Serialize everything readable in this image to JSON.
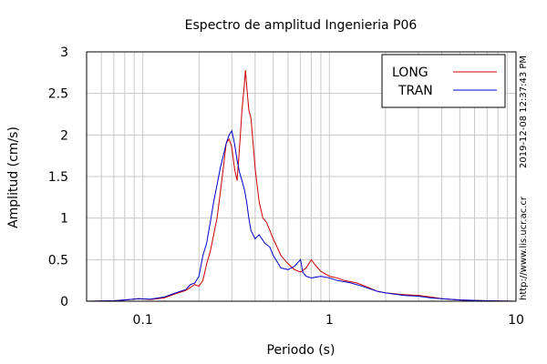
{
  "chart_data": {
    "type": "line",
    "title": "Espectro de amplitud Ingenieria P06",
    "xlabel": "Periodo (s)",
    "ylabel": "Amplitud (cm/s)",
    "x_scale": "log",
    "xlim": [
      0.05,
      10
    ],
    "ylim": [
      0,
      3
    ],
    "x_tick_labels": [
      {
        "value": 0.1,
        "label": "0.1"
      },
      {
        "value": 1,
        "label": "1"
      },
      {
        "value": 10,
        "label": "10"
      }
    ],
    "y_tick_labels": [
      {
        "value": 0,
        "label": "0"
      },
      {
        "value": 0.5,
        "label": "0.5"
      },
      {
        "value": 1,
        "label": "1"
      },
      {
        "value": 1.5,
        "label": "1.5"
      },
      {
        "value": 2,
        "label": "2"
      },
      {
        "value": 2.5,
        "label": "2.5"
      },
      {
        "value": 3,
        "label": "3"
      }
    ],
    "grid": true,
    "legend_position": "top-right",
    "series": [
      {
        "name": "LONG",
        "color": "#cc0000",
        "points": [
          [
            0.05,
            0.0
          ],
          [
            0.07,
            0.005
          ],
          [
            0.085,
            0.02
          ],
          [
            0.095,
            0.03
          ],
          [
            0.11,
            0.02
          ],
          [
            0.13,
            0.04
          ],
          [
            0.15,
            0.09
          ],
          [
            0.17,
            0.13
          ],
          [
            0.19,
            0.2
          ],
          [
            0.2,
            0.18
          ],
          [
            0.21,
            0.25
          ],
          [
            0.22,
            0.45
          ],
          [
            0.23,
            0.6
          ],
          [
            0.25,
            1.0
          ],
          [
            0.26,
            1.3
          ],
          [
            0.27,
            1.6
          ],
          [
            0.28,
            1.9
          ],
          [
            0.29,
            1.95
          ],
          [
            0.3,
            1.85
          ],
          [
            0.31,
            1.6
          ],
          [
            0.32,
            1.45
          ],
          [
            0.33,
            1.85
          ],
          [
            0.34,
            2.3
          ],
          [
            0.35,
            2.6
          ],
          [
            0.355,
            2.78
          ],
          [
            0.36,
            2.6
          ],
          [
            0.37,
            2.3
          ],
          [
            0.38,
            2.2
          ],
          [
            0.39,
            1.9
          ],
          [
            0.4,
            1.6
          ],
          [
            0.42,
            1.2
          ],
          [
            0.44,
            1.0
          ],
          [
            0.46,
            0.95
          ],
          [
            0.48,
            0.85
          ],
          [
            0.5,
            0.75
          ],
          [
            0.55,
            0.55
          ],
          [
            0.6,
            0.45
          ],
          [
            0.65,
            0.38
          ],
          [
            0.7,
            0.35
          ],
          [
            0.75,
            0.4
          ],
          [
            0.8,
            0.5
          ],
          [
            0.85,
            0.42
          ],
          [
            0.9,
            0.36
          ],
          [
            1.0,
            0.3
          ],
          [
            1.1,
            0.28
          ],
          [
            1.2,
            0.25
          ],
          [
            1.4,
            0.22
          ],
          [
            1.6,
            0.17
          ],
          [
            1.8,
            0.12
          ],
          [
            2.0,
            0.1
          ],
          [
            2.5,
            0.08
          ],
          [
            3.0,
            0.07
          ],
          [
            3.5,
            0.05
          ],
          [
            4.0,
            0.03
          ],
          [
            5.0,
            0.015
          ],
          [
            7.0,
            0.005
          ],
          [
            10.0,
            0.0
          ]
        ]
      },
      {
        "name": "TRAN",
        "color": "#0000cc",
        "points": [
          [
            0.05,
            0.0
          ],
          [
            0.07,
            0.005
          ],
          [
            0.085,
            0.02
          ],
          [
            0.095,
            0.03
          ],
          [
            0.11,
            0.025
          ],
          [
            0.13,
            0.05
          ],
          [
            0.15,
            0.1
          ],
          [
            0.17,
            0.14
          ],
          [
            0.18,
            0.2
          ],
          [
            0.19,
            0.22
          ],
          [
            0.2,
            0.3
          ],
          [
            0.21,
            0.55
          ],
          [
            0.22,
            0.7
          ],
          [
            0.23,
            0.95
          ],
          [
            0.24,
            1.2
          ],
          [
            0.25,
            1.4
          ],
          [
            0.26,
            1.6
          ],
          [
            0.27,
            1.75
          ],
          [
            0.28,
            1.9
          ],
          [
            0.29,
            2.0
          ],
          [
            0.3,
            2.05
          ],
          [
            0.31,
            1.9
          ],
          [
            0.32,
            1.7
          ],
          [
            0.33,
            1.55
          ],
          [
            0.34,
            1.45
          ],
          [
            0.35,
            1.35
          ],
          [
            0.36,
            1.2
          ],
          [
            0.37,
            1.0
          ],
          [
            0.38,
            0.85
          ],
          [
            0.4,
            0.75
          ],
          [
            0.42,
            0.8
          ],
          [
            0.45,
            0.7
          ],
          [
            0.48,
            0.65
          ],
          [
            0.5,
            0.55
          ],
          [
            0.55,
            0.4
          ],
          [
            0.6,
            0.38
          ],
          [
            0.65,
            0.42
          ],
          [
            0.7,
            0.5
          ],
          [
            0.72,
            0.35
          ],
          [
            0.75,
            0.3
          ],
          [
            0.8,
            0.28
          ],
          [
            0.9,
            0.3
          ],
          [
            1.0,
            0.28
          ],
          [
            1.1,
            0.25
          ],
          [
            1.3,
            0.22
          ],
          [
            1.5,
            0.18
          ],
          [
            1.8,
            0.12
          ],
          [
            2.0,
            0.1
          ],
          [
            2.5,
            0.07
          ],
          [
            3.0,
            0.06
          ],
          [
            3.5,
            0.04
          ],
          [
            4.0,
            0.03
          ],
          [
            5.0,
            0.015
          ],
          [
            7.0,
            0.005
          ],
          [
            10.0,
            0.0
          ]
        ]
      }
    ],
    "side_annotations": {
      "timestamp": "2019-12-08 12:37:43 PM",
      "url": "http://www.lis.ucr.ac.cr"
    }
  }
}
